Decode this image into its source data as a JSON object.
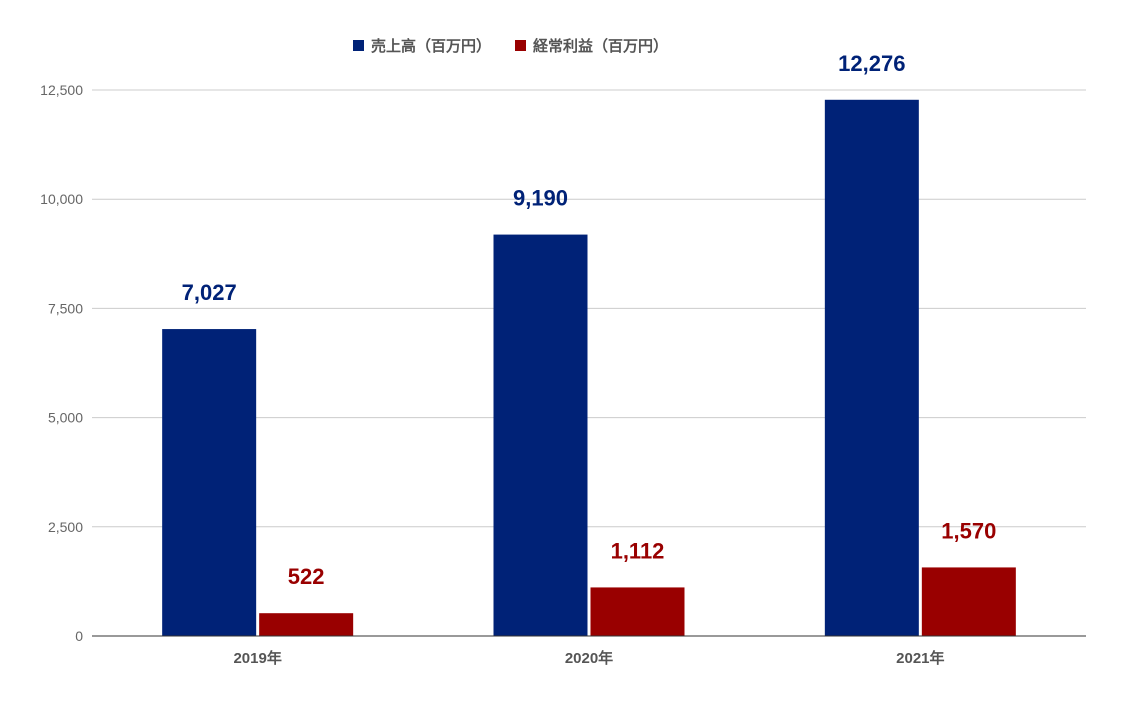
{
  "chart_data": {
    "type": "bar",
    "categories": [
      "2019年",
      "2020年",
      "2021年"
    ],
    "series": [
      {
        "name": "売上高（百万円）",
        "color": "#002277",
        "values": [
          7027,
          9190,
          12276
        ],
        "labels": [
          "7,027",
          "9,190",
          "12,276"
        ]
      },
      {
        "name": "経常利益（百万円）",
        "color": "#990000",
        "values": [
          522,
          1112,
          1570
        ],
        "labels": [
          "522",
          "1,112",
          "1,570"
        ]
      }
    ],
    "ylim": [
      0,
      12500
    ],
    "yticks": [
      0,
      2500,
      5000,
      7500,
      10000,
      12500
    ],
    "ytick_labels": [
      "0",
      "2,500",
      "5,000",
      "7,500",
      "10,000",
      "12,500"
    ],
    "grid": true,
    "legend": "top-center",
    "title": "",
    "xlabel": "",
    "ylabel": ""
  }
}
